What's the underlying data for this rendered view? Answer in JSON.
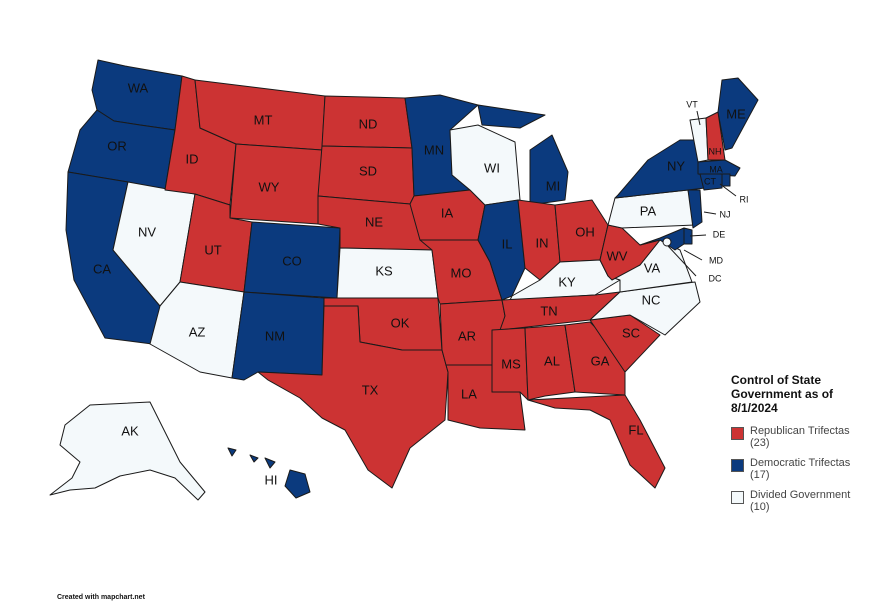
{
  "colors": {
    "republican": "#cc3333",
    "democratic": "#0b3a7e",
    "divided": "#f4f9fb",
    "border": "#1a1a1a"
  },
  "states": {
    "WA": "WA",
    "OR": "OR",
    "CA": "CA",
    "NV": "NV",
    "ID": "ID",
    "MT": "MT",
    "WY": "WY",
    "UT": "UT",
    "AZ": "AZ",
    "CO": "CO",
    "NM": "NM",
    "ND": "ND",
    "SD": "SD",
    "NE": "NE",
    "KS": "KS",
    "OK": "OK",
    "TX": "TX",
    "MN": "MN",
    "IA": "IA",
    "MO": "MO",
    "AR": "AR",
    "LA": "LA",
    "WI": "WI",
    "IL": "IL",
    "MI": "MI",
    "IN": "IN",
    "OH": "OH",
    "KY": "KY",
    "TN": "TN",
    "MS": "MS",
    "AL": "AL",
    "GA": "GA",
    "FL": "FL",
    "SC": "SC",
    "NC": "NC",
    "VA": "VA",
    "WV": "WV",
    "PA": "PA",
    "NY": "NY",
    "ME": "ME",
    "VT": "VT",
    "NH": "NH",
    "MA": "MA",
    "CT": "CT",
    "RI": "RI",
    "NJ": "NJ",
    "DE": "DE",
    "MD": "MD",
    "DC": "DC",
    "AK": "AK",
    "HI": "HI"
  },
  "state_control": {
    "WA": "democratic",
    "OR": "democratic",
    "CA": "democratic",
    "NV": "divided",
    "ID": "republican",
    "MT": "republican",
    "WY": "republican",
    "UT": "republican",
    "AZ": "divided",
    "CO": "democratic",
    "NM": "democratic",
    "ND": "republican",
    "SD": "republican",
    "NE": "republican",
    "KS": "divided",
    "OK": "republican",
    "TX": "republican",
    "MN": "democratic",
    "IA": "republican",
    "MO": "republican",
    "AR": "republican",
    "LA": "republican",
    "WI": "divided",
    "IL": "democratic",
    "MI": "democratic",
    "IN": "republican",
    "OH": "republican",
    "KY": "divided",
    "TN": "republican",
    "MS": "republican",
    "AL": "republican",
    "GA": "republican",
    "FL": "republican",
    "SC": "republican",
    "NC": "divided",
    "VA": "divided",
    "WV": "republican",
    "PA": "divided",
    "NY": "democratic",
    "ME": "democratic",
    "VT": "divided",
    "NH": "republican",
    "MA": "democratic",
    "CT": "democratic",
    "RI": "democratic",
    "NJ": "democratic",
    "DE": "democratic",
    "MD": "democratic",
    "DC": "divided",
    "AK": "divided",
    "HI": "democratic"
  },
  "legend": {
    "title": "Control of State Government as of 8/1/2024",
    "items": [
      {
        "key": "republican",
        "label": "Republican Trifectas (23)"
      },
      {
        "key": "democratic",
        "label": "Democratic Trifectas (17)"
      },
      {
        "key": "divided",
        "label": "Divided Government (10)"
      }
    ]
  },
  "credit": "Created with mapchart.net"
}
